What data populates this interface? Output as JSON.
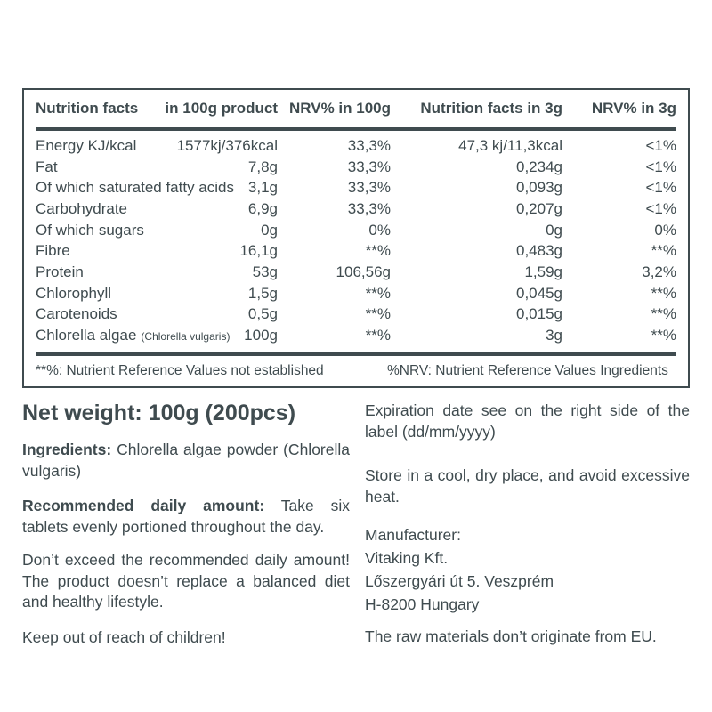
{
  "colors": {
    "text": "#3f4b4f",
    "background": "#ffffff"
  },
  "table": {
    "headers": [
      "Nutrition facts",
      "in 100g product",
      "NRV% in 100g",
      "Nutrition facts in 3g",
      "NRV% in 3g"
    ],
    "rows": [
      {
        "name": "Energy KJ/kcal",
        "v100": "1577kj/376kcal",
        "nrv100": "33,3%",
        "v3": "47,3 kj/11,3kcal",
        "nrv3": "<1%"
      },
      {
        "name": "Fat",
        "v100": "7,8g",
        "nrv100": "33,3%",
        "v3": "0,234g",
        "nrv3": "<1%"
      },
      {
        "name": "Of which saturated fatty acids",
        "v100": "3,1g",
        "nrv100": "33,3%",
        "v3": "0,093g",
        "nrv3": "<1%"
      },
      {
        "name": "Carbohydrate",
        "v100": "6,9g",
        "nrv100": "33,3%",
        "v3": "0,207g",
        "nrv3": "<1%"
      },
      {
        "name": "Of which sugars",
        "v100": "0g",
        "nrv100": "0%",
        "v3": "0g",
        "nrv3": "0%"
      },
      {
        "name": "Fibre",
        "v100": "16,1g",
        "nrv100": "**%",
        "v3": "0,483g",
        "nrv3": "**%"
      },
      {
        "name": "Protein",
        "v100": "53g",
        "nrv100": "106,56g",
        "v3": "1,59g",
        "nrv3": "3,2%"
      },
      {
        "name": "Chlorophyll",
        "v100": "1,5g",
        "nrv100": "**%",
        "v3": "0,045g",
        "nrv3": "**%"
      },
      {
        "name": "Carotenoids",
        "v100": "0,5g",
        "nrv100": "**%",
        "v3": "0,015g",
        "nrv3": "**%"
      },
      {
        "name": "Chlorella algae",
        "note": "(Chlorella vulgaris)",
        "v100": "100g",
        "nrv100": "**%",
        "v3": "3g",
        "nrv3": "**%"
      }
    ],
    "footnote_left": "**%: Nutrient Reference Values not established",
    "footnote_right": "%NRV: Nutrient Reference Values Ingredients"
  },
  "left": {
    "net_weight": "Net weight: 100g (200pcs)",
    "ingredients_label": "Ingredients:",
    "ingredients_text": "Chlorella algae powder (Chlorella vulgaris)",
    "recommended_label": "Recommended daily amount:",
    "recommended_text": "Take six tablets evenly portioned throughout the day.",
    "dont_exceed": "Don’t exceed the recommended daily amount! The product doesn’t replace a balanced diet and healthy lifestyle.",
    "keep_out": "Keep out of reach of children!"
  },
  "right": {
    "expiration": "Expiration date see on the right side of the label (dd/mm/yyyy)",
    "storage": "Store in a cool, dry place, and avoid excessive heat.",
    "manufacturer_label": "Manufacturer:",
    "manufacturer_name": "Vitaking Kft.",
    "manufacturer_street": "Lőszergyári út 5. Veszprém",
    "manufacturer_city": "H-8200 Hungary",
    "raw_materials": "The raw materials don’t originate from EU."
  }
}
